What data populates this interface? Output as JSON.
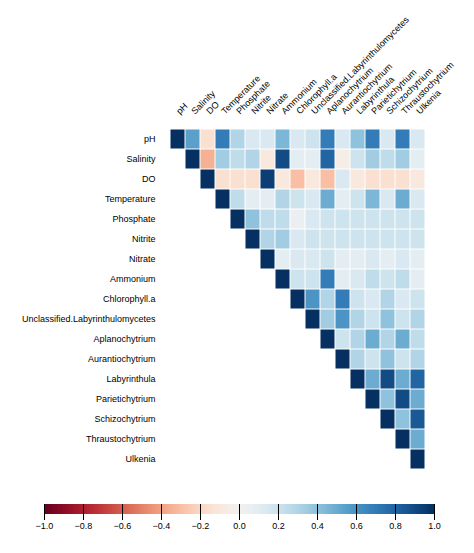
{
  "chart_data": {
    "type": "heatmap",
    "categories": [
      "pH",
      "Salinity",
      "DO",
      "Temperature",
      "Phosphate",
      "Nitrite",
      "Nitrate",
      "Ammonium",
      "Chlorophyll.a",
      "Unclassified.Labyrinthulomycetes",
      "Aplanochytrium",
      "Aurantiochytrium",
      "Labyrinthula",
      "Parietichytrium",
      "Schizochytrium",
      "Thraustochytrium",
      "Ulkenia"
    ],
    "cells": [
      [
        1.0,
        0.55,
        -0.15,
        0.7,
        0.3,
        0.15,
        0.15,
        0.45,
        0.15,
        0.2,
        0.7,
        0.15,
        0.4,
        0.7,
        0.15,
        0.7,
        0.15
      ],
      [
        null,
        1.0,
        -0.35,
        0.35,
        0.25,
        0.3,
        -0.1,
        0.9,
        0.1,
        0.1,
        0.8,
        -0.05,
        0.2,
        0.35,
        0.25,
        0.35,
        0.1
      ],
      [
        null,
        null,
        1.0,
        -0.15,
        -0.15,
        -0.15,
        0.95,
        -0.1,
        -0.3,
        -0.1,
        -0.3,
        0.15,
        -0.1,
        -0.15,
        -0.15,
        -0.15,
        -0.1
      ],
      [
        null,
        null,
        null,
        1.0,
        0.25,
        0.1,
        0.1,
        0.3,
        0.2,
        0.15,
        0.5,
        0.1,
        0.2,
        0.45,
        0.15,
        0.5,
        0.15
      ],
      [
        null,
        null,
        null,
        null,
        1.0,
        0.4,
        0.25,
        0.25,
        0.05,
        0.15,
        0.2,
        0.2,
        0.2,
        0.2,
        0.2,
        0.2,
        0.2
      ],
      [
        null,
        null,
        null,
        null,
        null,
        1.0,
        0.3,
        0.35,
        0.15,
        0.2,
        0.2,
        0.2,
        0.2,
        0.2,
        0.2,
        0.2,
        0.2
      ],
      [
        null,
        null,
        null,
        null,
        null,
        null,
        1.0,
        0.1,
        0.15,
        0.15,
        0.2,
        0.1,
        0.1,
        0.15,
        0.1,
        0.15,
        0.1
      ],
      [
        null,
        null,
        null,
        null,
        null,
        null,
        null,
        1.0,
        0.2,
        0.2,
        0.7,
        0.1,
        0.15,
        0.25,
        0.2,
        0.25,
        0.1
      ],
      [
        null,
        null,
        null,
        null,
        null,
        null,
        null,
        null,
        1.0,
        0.6,
        0.3,
        0.7,
        0.2,
        0.15,
        0.3,
        0.15,
        0.2
      ],
      [
        null,
        null,
        null,
        null,
        null,
        null,
        null,
        null,
        null,
        1.0,
        0.35,
        0.6,
        0.3,
        0.2,
        0.4,
        0.2,
        0.3
      ],
      [
        null,
        null,
        null,
        null,
        null,
        null,
        null,
        null,
        null,
        null,
        1.0,
        0.2,
        0.3,
        0.5,
        0.3,
        0.5,
        0.25
      ],
      [
        null,
        null,
        null,
        null,
        null,
        null,
        null,
        null,
        null,
        null,
        null,
        1.0,
        0.3,
        0.2,
        0.4,
        0.2,
        0.3
      ],
      [
        null,
        null,
        null,
        null,
        null,
        null,
        null,
        null,
        null,
        null,
        null,
        null,
        1.0,
        0.5,
        0.9,
        0.5,
        0.8
      ],
      [
        null,
        null,
        null,
        null,
        null,
        null,
        null,
        null,
        null,
        null,
        null,
        null,
        null,
        1.0,
        0.4,
        0.9,
        0.5
      ],
      [
        null,
        null,
        null,
        null,
        null,
        null,
        null,
        null,
        null,
        null,
        null,
        null,
        null,
        null,
        1.0,
        0.4,
        0.85
      ],
      [
        null,
        null,
        null,
        null,
        null,
        null,
        null,
        null,
        null,
        null,
        null,
        null,
        null,
        null,
        null,
        1.0,
        0.5
      ],
      [
        null,
        null,
        null,
        null,
        null,
        null,
        null,
        null,
        null,
        null,
        null,
        null,
        null,
        null,
        null,
        null,
        1.0
      ]
    ],
    "colorbar_range": [
      -1.0,
      1.0
    ],
    "colorbar_ticks": [
      {
        "value": 1,
        "label": "1.0"
      },
      0.8,
      0.6,
      0.4,
      0.2,
      {
        "value": 0,
        "label": "0.0"
      },
      {
        "value": -0.2,
        "label": "−0.2"
      },
      {
        "value": -0.4,
        "label": "−0.4"
      },
      {
        "value": -0.6,
        "label": "−0.6"
      },
      {
        "value": -0.8,
        "label": "−0.8"
      },
      {
        "value": -1,
        "label": "−1.0"
      }
    ],
    "grid": false
  }
}
